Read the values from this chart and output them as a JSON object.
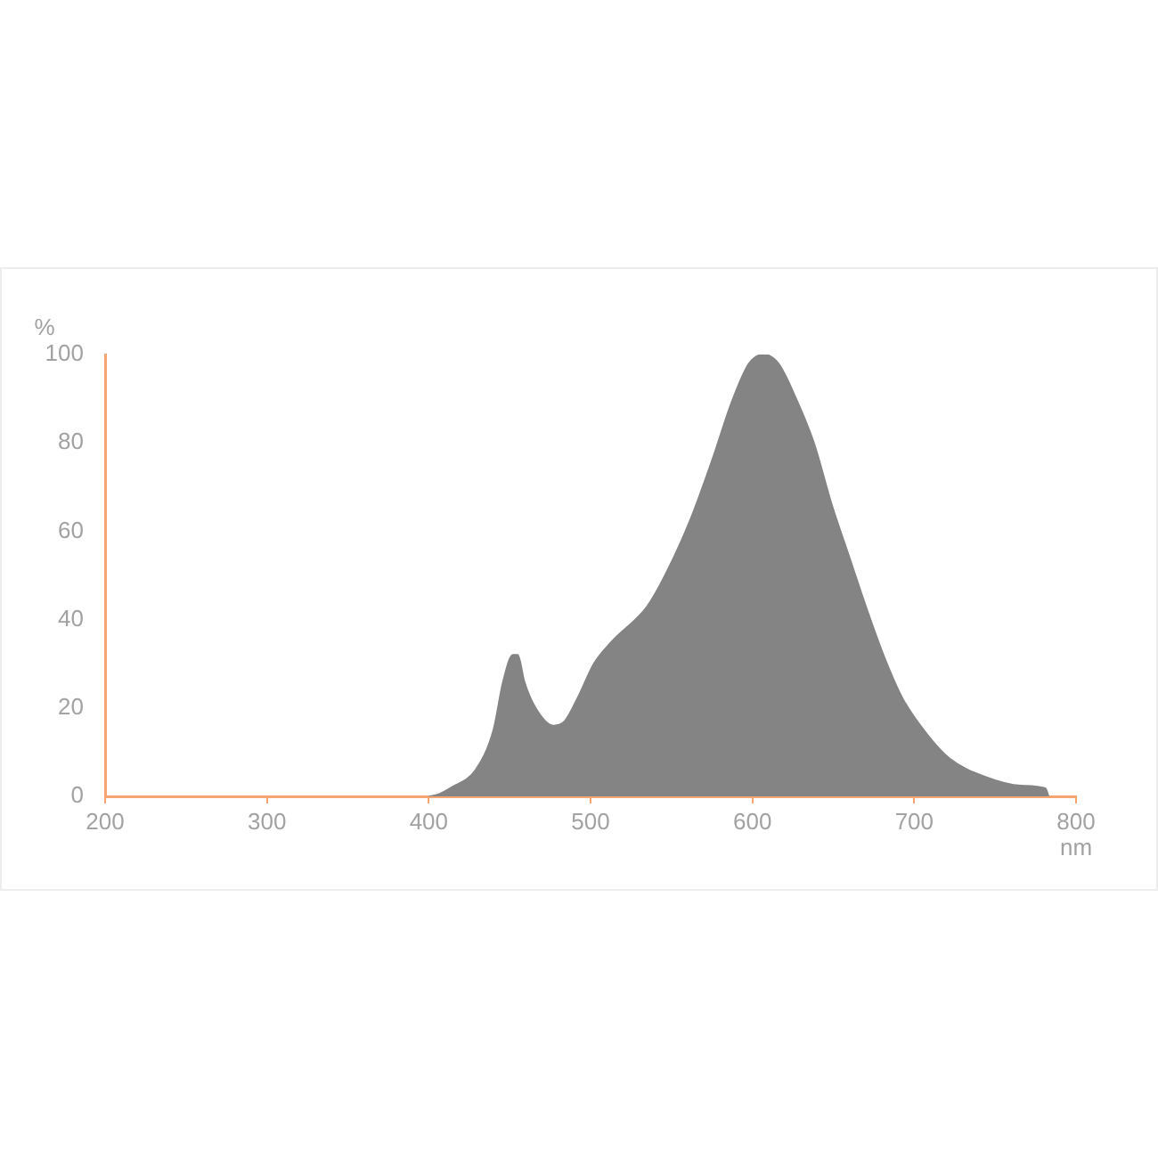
{
  "chart_data": {
    "type": "area",
    "xlabel": "nm",
    "ylabel": "%",
    "x": [
      400,
      405,
      414,
      429,
      440,
      446,
      452,
      455,
      459,
      466,
      477,
      484,
      493,
      502,
      513,
      535,
      546,
      561,
      576,
      587,
      598,
      607,
      616,
      627,
      638,
      649,
      660,
      671,
      682,
      693,
      708,
      722,
      744,
      766,
      781,
      783
    ],
    "series": [
      {
        "color": "#848484",
        "values": [
          0,
          0.3,
          2,
          6,
          15,
          26,
          32,
          32,
          26,
          20,
          16,
          17,
          23,
          30,
          35,
          43,
          50,
          62,
          77,
          89,
          98,
          100,
          98,
          90,
          80,
          66,
          54,
          42,
          31,
          22,
          14,
          8.5,
          4.4,
          2.4,
          1.8,
          0
        ]
      }
    ],
    "xlim": [
      200,
      800
    ],
    "xticks": [
      200,
      300,
      400,
      500,
      600,
      700,
      800
    ],
    "ylim": [
      0,
      100
    ],
    "yticks": [
      0,
      20,
      40,
      60,
      80,
      100
    ],
    "grid": false,
    "legend": false
  }
}
